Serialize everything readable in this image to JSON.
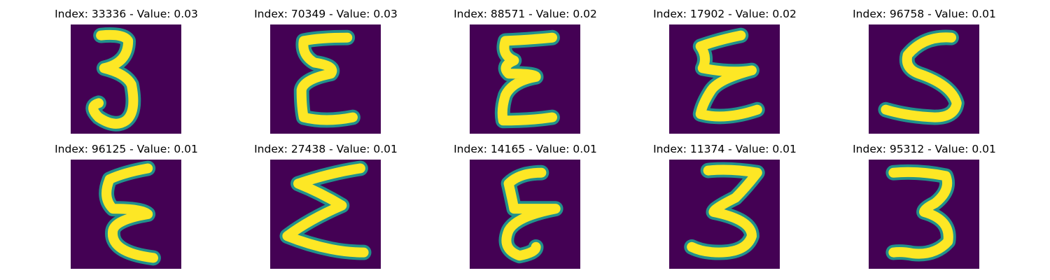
{
  "panels": [
    {
      "title": "Index: 33336 - Value: 0.03",
      "glyph": "three-icon"
    },
    {
      "title": "Index: 70349 - Value: 0.03",
      "glyph": "epsilon-icon"
    },
    {
      "title": "Index: 88571 - Value: 0.02",
      "glyph": "epsilon-icon"
    },
    {
      "title": "Index: 17902 - Value: 0.02",
      "glyph": "epsilon-icon"
    },
    {
      "title": "Index: 96758 - Value: 0.01",
      "glyph": "s-icon"
    },
    {
      "title": "Index: 96125 - Value: 0.01",
      "glyph": "epsilon-icon"
    },
    {
      "title": "Index: 27438 - Value: 0.01",
      "glyph": "sigma-icon"
    },
    {
      "title": "Index: 14165 - Value: 0.01",
      "glyph": "epsilon-icon"
    },
    {
      "title": "Index: 11374 - Value: 0.01",
      "glyph": "three-icon"
    },
    {
      "title": "Index: 95312 - Value: 0.01",
      "glyph": "three-icon"
    }
  ],
  "colors": {
    "background": "#440154",
    "stroke_mid": "#21918c",
    "stroke_core": "#fde725"
  }
}
